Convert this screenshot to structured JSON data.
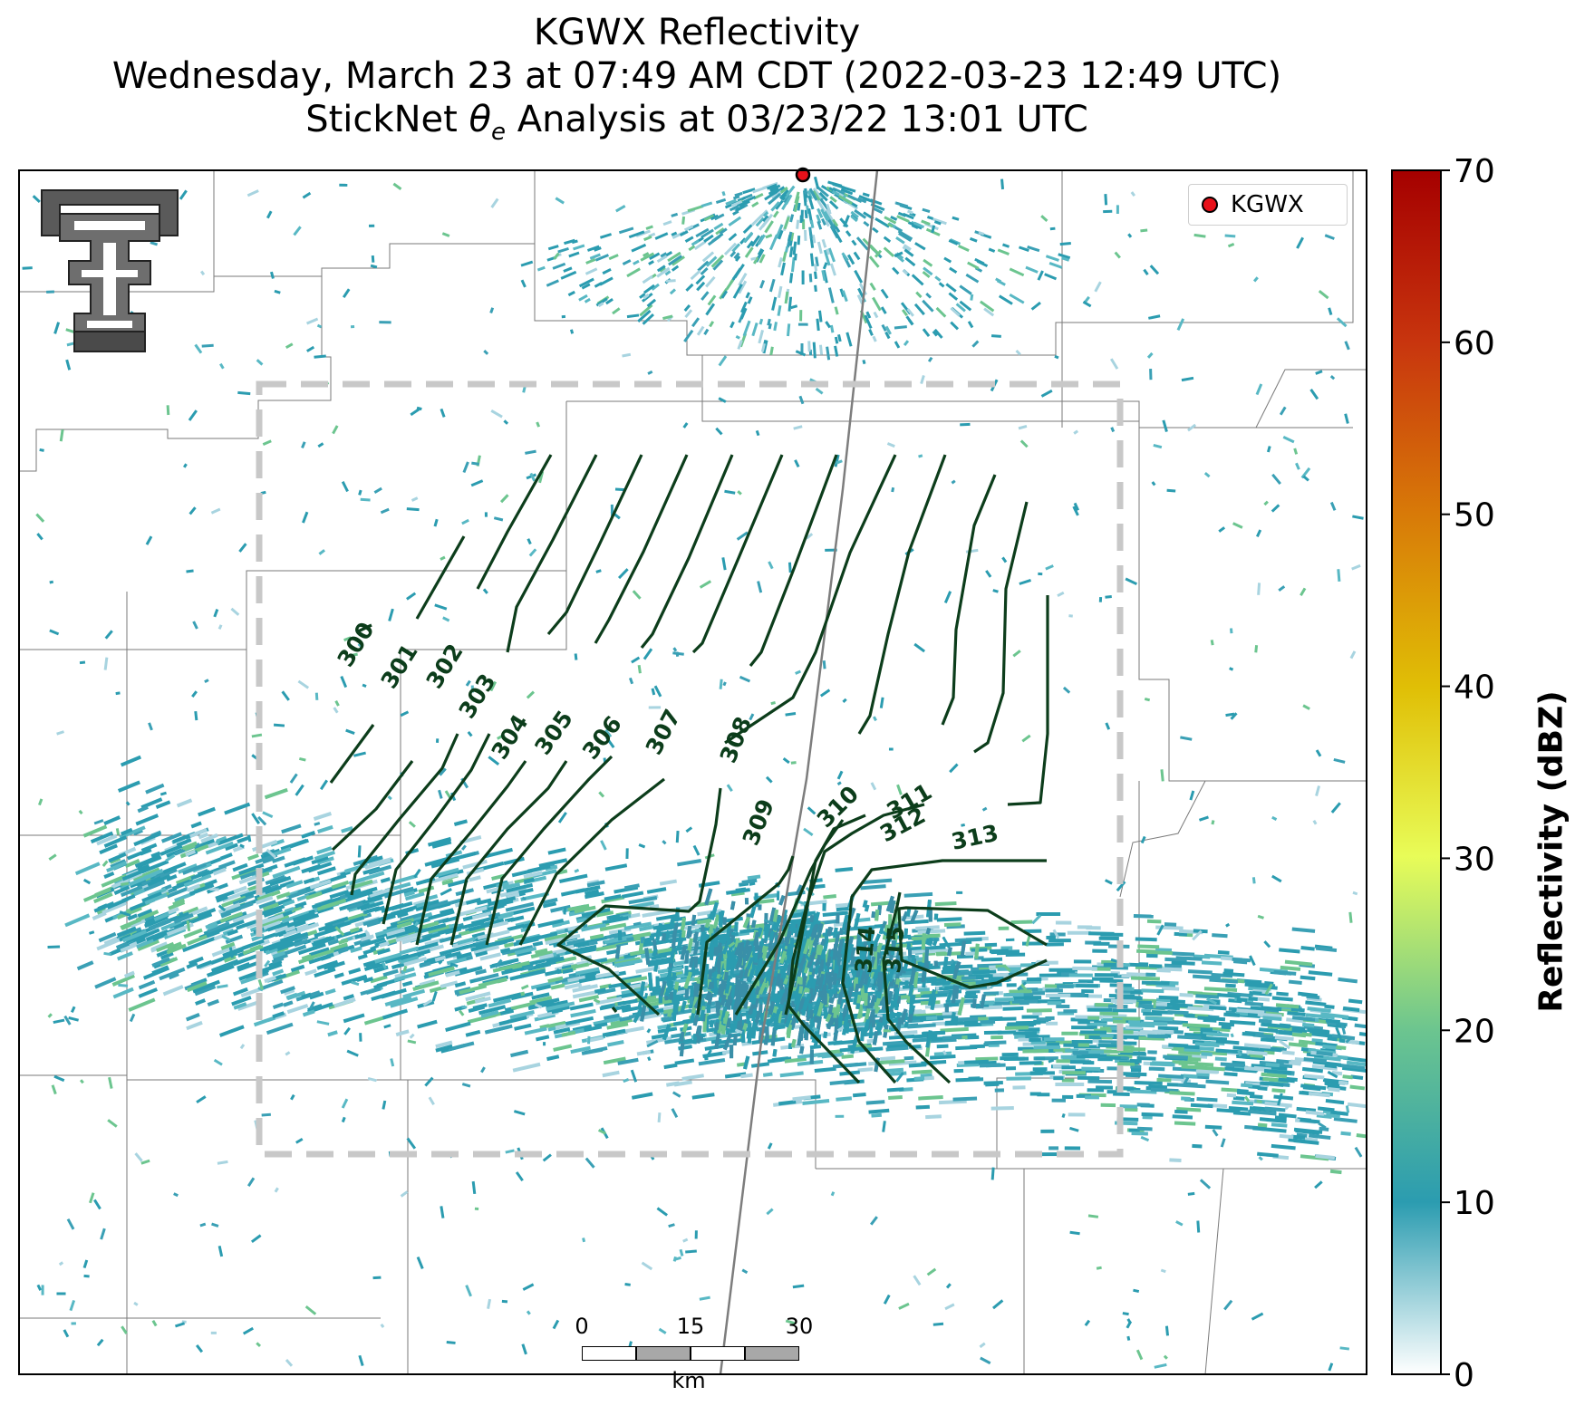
{
  "title": {
    "line1": "KGWX Reflectivity",
    "line2": "Wednesday, March 23 at 07:49 AM CDT (2022-03-23 12:49 UTC)",
    "line3_prefix": "StickNet ",
    "line3_symbol": "θ",
    "line3_sub": "e",
    "line3_suffix": " Analysis at 03/23/22 13:01 UTC"
  },
  "legend": {
    "label": "KGWX",
    "color": "#e8111a"
  },
  "colorbar": {
    "label": "Reflectivity (dBZ)",
    "ticks": [
      "0",
      "10",
      "20",
      "30",
      "40",
      "50",
      "60",
      "70"
    ],
    "min": 0,
    "max": 70,
    "colors": [
      "#ffffff",
      "#2b9cb0",
      "#6cc58f",
      "#e8fc58",
      "#e0bf06",
      "#d87a08",
      "#c8350e",
      "#a50000"
    ]
  },
  "scalebar": {
    "ticks": [
      "0",
      "15",
      "30"
    ],
    "unit": "km"
  },
  "contours": {
    "color": "#0c3d1b",
    "labels": [
      "300",
      "301",
      "302",
      "303",
      "304",
      "305",
      "306",
      "307",
      "308",
      "309",
      "310",
      "311",
      "312",
      "313",
      "314",
      "315"
    ]
  },
  "analysis_box": {
    "color": "#c8c8c8",
    "style": "dashed"
  },
  "logo": {
    "name": "Texas Tech Double T"
  }
}
